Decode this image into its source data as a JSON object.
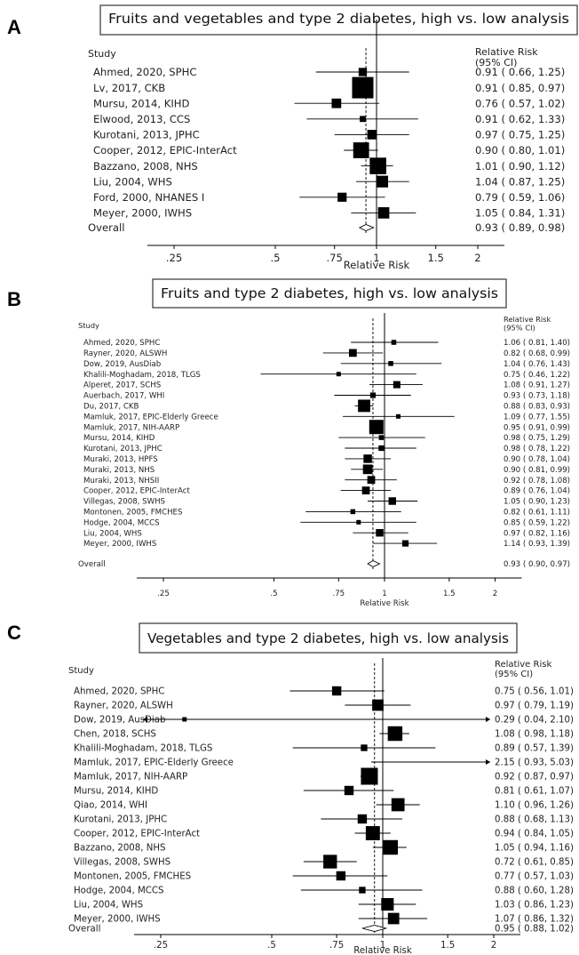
{
  "chart_data": [
    {
      "type": "forest",
      "panel_label": "A",
      "title": "Fruits and vegetables and type 2 diabetes, high vs. low analysis",
      "study_header": "Study",
      "rr_header": "Relative Risk",
      "ci_header": "(95% CI)",
      "xlabel": "Relative Risk",
      "x_ticks": [
        0.25,
        0.5,
        0.75,
        1,
        1.5,
        2
      ],
      "x_tick_labels": [
        ".25",
        ".5",
        ".75",
        "1",
        "1.5",
        "2"
      ],
      "pooled_estimate": 0.93,
      "studies": [
        {
          "name": "Ahmed, 2020, SPHC",
          "rr": 0.91,
          "lo": 0.66,
          "hi": 1.25,
          "label": "0.91 ( 0.66, 1.25)",
          "w": 0.15
        },
        {
          "name": "Lv, 2017, CKB",
          "rr": 0.91,
          "lo": 0.85,
          "hi": 0.97,
          "label": "0.91 ( 0.85, 0.97)",
          "w": 1.0
        },
        {
          "name": "Mursu, 2014, KIHD",
          "rr": 0.76,
          "lo": 0.57,
          "hi": 1.02,
          "label": "0.76 ( 0.57, 1.02)",
          "w": 0.2
        },
        {
          "name": "Elwood, 2013, CCS",
          "rr": 0.91,
          "lo": 0.62,
          "hi": 1.33,
          "label": "0.91 ( 0.62, 1.33)",
          "w": 0.08
        },
        {
          "name": "Kurotani, 2013, JPHC",
          "rr": 0.97,
          "lo": 0.75,
          "hi": 1.25,
          "label": "0.97 ( 0.75, 1.25)",
          "w": 0.2
        },
        {
          "name": "Cooper, 2012, EPIC-InterAct",
          "rr": 0.9,
          "lo": 0.8,
          "hi": 1.01,
          "label": "0.90 ( 0.80, 1.01)",
          "w": 0.55
        },
        {
          "name": "Bazzano, 2008, NHS",
          "rr": 1.01,
          "lo": 0.9,
          "hi": 1.12,
          "label": "1.01 ( 0.90, 1.12)",
          "w": 0.6
        },
        {
          "name": "Liu, 2004, WHS",
          "rr": 1.04,
          "lo": 0.87,
          "hi": 1.25,
          "label": "1.04 ( 0.87, 1.25)",
          "w": 0.3
        },
        {
          "name": "Ford, 2000, NHANES I",
          "rr": 0.79,
          "lo": 0.59,
          "hi": 1.06,
          "label": "0.79 ( 0.59, 1.06)",
          "w": 0.18
        },
        {
          "name": "Meyer, 2000, IWHS",
          "rr": 1.05,
          "lo": 0.84,
          "hi": 1.31,
          "label": "1.05 ( 0.84, 1.31)",
          "w": 0.28
        }
      ],
      "overall": {
        "name": "Overall",
        "rr": 0.93,
        "lo": 0.89,
        "hi": 0.98,
        "label": "0.93 ( 0.89, 0.98)"
      }
    },
    {
      "type": "forest",
      "panel_label": "B",
      "title": "Fruits and type 2 diabetes, high vs. low analysis",
      "study_header": "Study",
      "rr_header": "Relative Risk",
      "ci_header": "(95% CI)",
      "xlabel": "Relative Risk",
      "x_ticks": [
        0.25,
        0.5,
        0.75,
        1,
        1.5,
        2
      ],
      "x_tick_labels": [
        ".25",
        ".5",
        ".75",
        "1",
        "1.5",
        "2"
      ],
      "pooled_estimate": 0.93,
      "studies": [
        {
          "name": "Ahmed, 2020, SPHC",
          "rr": 1.06,
          "lo": 0.81,
          "hi": 1.4,
          "label": "1.06 ( 0.81, 1.40)",
          "w": 0.12
        },
        {
          "name": "Rayner, 2020, ALSWH",
          "rr": 0.82,
          "lo": 0.68,
          "hi": 0.99,
          "label": "0.82 ( 0.68, 0.99)",
          "w": 0.3
        },
        {
          "name": "Dow, 2019, AusDiab",
          "rr": 1.04,
          "lo": 0.76,
          "hi": 1.43,
          "label": "1.04 ( 0.76, 1.43)",
          "w": 0.12
        },
        {
          "name": "Khalili-Moghadam, 2018, TLGS",
          "rr": 0.75,
          "lo": 0.46,
          "hi": 1.22,
          "label": "0.75 ( 0.46, 1.22)",
          "w": 0.06
        },
        {
          "name": "Alperet, 2017, SCHS",
          "rr": 1.08,
          "lo": 0.91,
          "hi": 1.27,
          "label": "1.08 ( 0.91, 1.27)",
          "w": 0.25
        },
        {
          "name": "Auerbach, 2017, WHI",
          "rr": 0.93,
          "lo": 0.73,
          "hi": 1.18,
          "label": "0.93 ( 0.73, 1.18)",
          "w": 0.15
        },
        {
          "name": "Du, 2017, CKB",
          "rr": 0.88,
          "lo": 0.83,
          "hi": 0.93,
          "label": "0.88 ( 0.83, 0.93)",
          "w": 0.75
        },
        {
          "name": "Mamluk, 2017, EPIC-Elderly Greece",
          "rr": 1.09,
          "lo": 0.77,
          "hi": 1.55,
          "label": "1.09 ( 0.77, 1.55)",
          "w": 0.06
        },
        {
          "name": "Mamluk, 2017, NIH-AARP",
          "rr": 0.95,
          "lo": 0.91,
          "hi": 0.99,
          "label": "0.95 ( 0.91, 0.99)",
          "w": 1.0
        },
        {
          "name": "Mursu, 2014, KIHD",
          "rr": 0.98,
          "lo": 0.75,
          "hi": 1.29,
          "label": "0.98 ( 0.75, 1.29)",
          "w": 0.12
        },
        {
          "name": "Kurotani, 2013, JPHC",
          "rr": 0.98,
          "lo": 0.78,
          "hi": 1.22,
          "label": "0.98 ( 0.78, 1.22)",
          "w": 0.15
        },
        {
          "name": "Muraki, 2013, HPFS",
          "rr": 0.9,
          "lo": 0.78,
          "hi": 1.04,
          "label": "0.90 ( 0.78, 1.04)",
          "w": 0.35
        },
        {
          "name": "Muraki, 2013, NHS",
          "rr": 0.9,
          "lo": 0.81,
          "hi": 0.99,
          "label": "0.90 ( 0.81, 0.99)",
          "w": 0.45
        },
        {
          "name": "Muraki, 2013, NHSII",
          "rr": 0.92,
          "lo": 0.78,
          "hi": 1.08,
          "label": "0.92 ( 0.78, 1.08)",
          "w": 0.3
        },
        {
          "name": "Cooper, 2012, EPIC-InterAct",
          "rr": 0.89,
          "lo": 0.76,
          "hi": 1.04,
          "label": "0.89 ( 0.76, 1.04)",
          "w": 0.3
        },
        {
          "name": "Villegas, 2008, SWHS",
          "rr": 1.05,
          "lo": 0.9,
          "hi": 1.23,
          "label": "1.05 ( 0.90, 1.23)",
          "w": 0.28
        },
        {
          "name": "Montonen, 2005, FMCHES",
          "rr": 0.82,
          "lo": 0.61,
          "hi": 1.11,
          "label": "0.82 ( 0.61, 1.11)",
          "w": 0.12
        },
        {
          "name": "Hodge, 2004, MCCS",
          "rr": 0.85,
          "lo": 0.59,
          "hi": 1.22,
          "label": "0.85 ( 0.59, 1.22)",
          "w": 0.08
        },
        {
          "name": "Liu, 2004, WHS",
          "rr": 0.97,
          "lo": 0.82,
          "hi": 1.16,
          "label": "0.97 ( 0.82, 1.16)",
          "w": 0.28
        },
        {
          "name": "Meyer, 2000, IWHS",
          "rr": 1.14,
          "lo": 0.93,
          "hi": 1.39,
          "label": "1.14 ( 0.93, 1.39)",
          "w": 0.2
        }
      ],
      "overall": {
        "name": "Overall",
        "rr": 0.93,
        "lo": 0.9,
        "hi": 0.97,
        "label": "0.93 ( 0.90, 0.97)"
      }
    },
    {
      "type": "forest",
      "panel_label": "C",
      "title": "Vegetables and type 2 diabetes, high vs. low analysis",
      "study_header": "Study",
      "rr_header": "Relative Risk",
      "ci_header": "(95% CI)",
      "xlabel": "Relative Risk",
      "x_ticks": [
        0.25,
        0.5,
        0.75,
        1,
        1.5,
        2
      ],
      "x_tick_labels": [
        ".25",
        ".5",
        ".75",
        "1",
        "1.5",
        "2"
      ],
      "pooled_estimate": 0.95,
      "studies": [
        {
          "name": "Ahmed, 2020, SPHC",
          "rr": 0.75,
          "lo": 0.56,
          "hi": 1.01,
          "label": "0.75 ( 0.56, 1.01)",
          "w": 0.3
        },
        {
          "name": "Rayner, 2020, ALSWH",
          "rr": 0.97,
          "lo": 0.79,
          "hi": 1.19,
          "label": "0.97 ( 0.79, 1.19)",
          "w": 0.45
        },
        {
          "name": "Dow, 2019, AusDiab",
          "rr": 0.29,
          "lo": 0.04,
          "hi": 2.1,
          "label": "0.29 ( 0.04, 2.10)",
          "w": 0.01
        },
        {
          "name": "Chen, 2018, SCHS",
          "rr": 1.08,
          "lo": 0.98,
          "hi": 1.18,
          "label": "1.08 ( 0.98, 1.18)",
          "w": 0.75
        },
        {
          "name": "Khalili-Moghadam, 2018, TLGS",
          "rr": 0.89,
          "lo": 0.57,
          "hi": 1.39,
          "label": "0.89 ( 0.57, 1.39)",
          "w": 0.15
        },
        {
          "name": "Mamluk, 2017, EPIC-Elderly Greece",
          "rr": 2.15,
          "lo": 0.93,
          "hi": 5.03,
          "label": "2.15 ( 0.93, 5.03)",
          "w": 0.01
        },
        {
          "name": "Mamluk, 2017, NIH-AARP",
          "rr": 0.92,
          "lo": 0.87,
          "hi": 0.97,
          "label": "0.92 ( 0.87, 0.97)",
          "w": 1.0
        },
        {
          "name": "Mursu, 2014, KIHD",
          "rr": 0.81,
          "lo": 0.61,
          "hi": 1.07,
          "label": "0.81 ( 0.61, 1.07)",
          "w": 0.3
        },
        {
          "name": "Qiao, 2014, WHI",
          "rr": 1.1,
          "lo": 0.96,
          "hi": 1.26,
          "label": "1.10 ( 0.96, 1.26)",
          "w": 0.6
        },
        {
          "name": "Kurotani, 2013, JPHC",
          "rr": 0.88,
          "lo": 0.68,
          "hi": 1.13,
          "label": "0.88 ( 0.68, 1.13)",
          "w": 0.3
        },
        {
          "name": "Cooper, 2012, EPIC-InterAct",
          "rr": 0.94,
          "lo": 0.84,
          "hi": 1.05,
          "label": "0.94 ( 0.84, 1.05)",
          "w": 0.7
        },
        {
          "name": "Bazzano, 2008, NHS",
          "rr": 1.05,
          "lo": 0.94,
          "hi": 1.16,
          "label": "1.05 ( 0.94, 1.16)",
          "w": 0.75
        },
        {
          "name": "Villegas, 2008, SWHS",
          "rr": 0.72,
          "lo": 0.61,
          "hi": 0.85,
          "label": "0.72 ( 0.61, 0.85)",
          "w": 0.65
        },
        {
          "name": "Montonen, 2005, FMCHES",
          "rr": 0.77,
          "lo": 0.57,
          "hi": 1.03,
          "label": "0.77 ( 0.57, 1.03)",
          "w": 0.3
        },
        {
          "name": "Hodge, 2004, MCCS",
          "rr": 0.88,
          "lo": 0.6,
          "hi": 1.28,
          "label": "0.88 ( 0.60, 1.28)",
          "w": 0.15
        },
        {
          "name": "Liu, 2004, WHS",
          "rr": 1.03,
          "lo": 0.86,
          "hi": 1.23,
          "label": "1.03 ( 0.86, 1.23)",
          "w": 0.55
        },
        {
          "name": "Meyer, 2000, IWHS",
          "rr": 1.07,
          "lo": 0.86,
          "hi": 1.32,
          "label": "1.07 ( 0.86, 1.32)",
          "w": 0.45
        }
      ],
      "overall": {
        "name": "Overall",
        "rr": 0.95,
        "lo": 0.88,
        "hi": 1.02,
        "label": "0.95 ( 0.88, 1.02)"
      }
    }
  ]
}
